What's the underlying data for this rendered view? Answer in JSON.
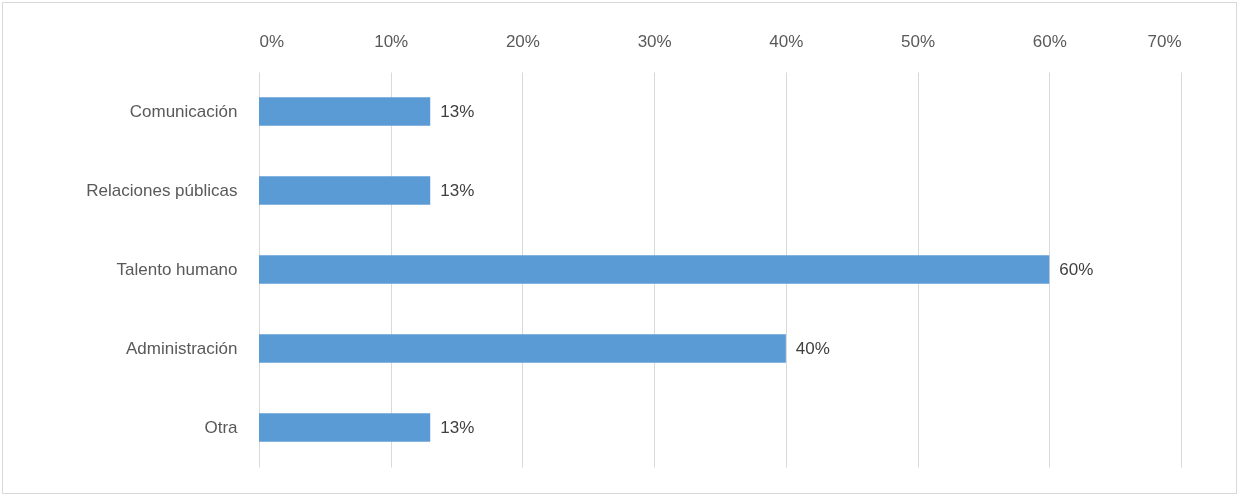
{
  "chart_data": {
    "type": "bar",
    "orientation": "horizontal",
    "categories": [
      "Comunicación",
      "Relaciones públicas",
      "Talento humano",
      "Administración",
      "Otra"
    ],
    "values": [
      13,
      13,
      60,
      40,
      13
    ],
    "value_labels": [
      "13%",
      "13%",
      "60%",
      "40%",
      "13%"
    ],
    "color": "#5b9bd5",
    "xlim": [
      0,
      70
    ],
    "xticks": [
      {
        "value": 0,
        "label": "0%"
      },
      {
        "value": 10,
        "label": "10%"
      },
      {
        "value": 20,
        "label": "20%"
      },
      {
        "value": 30,
        "label": "30%"
      },
      {
        "value": 40,
        "label": "40%"
      },
      {
        "value": 50,
        "label": "50%"
      },
      {
        "value": 60,
        "label": "60%"
      },
      {
        "value": 70,
        "label": "70%"
      }
    ],
    "grid": true
  }
}
